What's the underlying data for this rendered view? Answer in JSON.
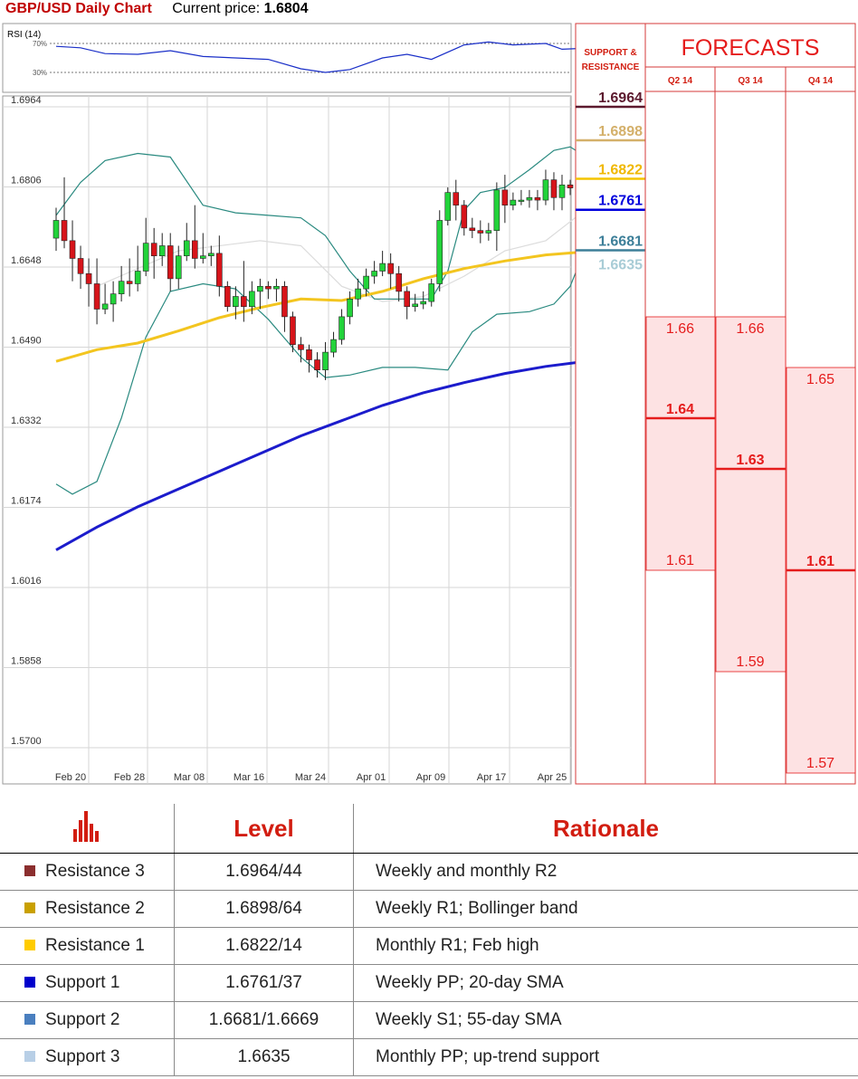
{
  "header": {
    "title": "GBP/USD Daily Chart",
    "price_label": "Current price:",
    "current_price": "1.6804"
  },
  "rsi_label": "RSI (14)",
  "rsi_ticks": [
    "70%",
    "30%"
  ],
  "sr_header_line1": "SUPPORT &",
  "sr_header_line2": "RESISTANCE",
  "forecasts_title": "FORECASTS",
  "quarters": [
    "Q2 14",
    "Q3 14",
    "Q4 14"
  ],
  "colors": {
    "resistance3": "#5c1a2e",
    "resistance2": "#d4b06a",
    "resistance1": "#f4c400",
    "support1": "#0000dd",
    "support2": "#2e7fa0",
    "support3": "#b9d9e6",
    "forecast_red": "#e51c1c",
    "forecast_fill": "#fde2e3",
    "sma_yellow": "#f3c51f",
    "sma_blue": "#1c1ccc",
    "bollinger": "#2a8a80"
  },
  "sr_levels": [
    {
      "value": "1.6964",
      "level": 1.6964,
      "color": "#5c1a2e",
      "line": "#5c1a2e"
    },
    {
      "value": "1.6898",
      "level": 1.6898,
      "color": "#d4b06a",
      "line": "#d4b06a"
    },
    {
      "value": "1.6822",
      "level": 1.6822,
      "color": "#f0b800",
      "line": "#f4c400"
    },
    {
      "value": "1.6761",
      "level": 1.6761,
      "color": "#0000dd",
      "line": "#0000dd"
    },
    {
      "value": "1.6681",
      "level": 1.6681,
      "color": "#3d7f99",
      "line": "#3d7f99"
    },
    {
      "value": "1.6635",
      "level": 1.6635,
      "color": "#a8ccd6",
      "line": ""
    }
  ],
  "forecasts": [
    {
      "quarter": "Q2 14",
      "high": 1.66,
      "high_label": "1.66",
      "median": 1.64,
      "median_label": "1.64",
      "low": 1.61,
      "low_label": "1.61"
    },
    {
      "quarter": "Q3 14",
      "high": 1.66,
      "high_label": "1.66",
      "median": 1.63,
      "median_label": "1.63",
      "low": 1.59,
      "low_label": "1.59"
    },
    {
      "quarter": "Q4 14",
      "high": 1.65,
      "high_label": "1.65",
      "median": 1.61,
      "median_label": "1.61",
      "low": 1.57,
      "low_label": "1.57"
    }
  ],
  "chart_data": {
    "type": "candlestick",
    "title": "GBP/USD Daily Chart",
    "y_ticks": [
      "1.6964",
      "1.6806",
      "1.6648",
      "1.6490",
      "1.6332",
      "1.6174",
      "1.6016",
      "1.5858",
      "1.5700"
    ],
    "ylim": [
      1.57,
      1.6964
    ],
    "x_ticks": [
      "Feb 20",
      "Feb 28",
      "Mar 08",
      "Mar 16",
      "Mar 24",
      "Apr 01",
      "Apr 09",
      "Apr 17",
      "Apr 25"
    ],
    "grid": true,
    "candles": [
      [
        1.6705,
        1.674,
        1.6765,
        1.668
      ],
      [
        1.674,
        1.67,
        1.6825,
        1.6685
      ],
      [
        1.67,
        1.6665,
        1.674,
        1.662
      ],
      [
        1.6665,
        1.6635,
        1.669,
        1.6605
      ],
      [
        1.6635,
        1.6615,
        1.6665,
        1.657
      ],
      [
        1.6615,
        1.6565,
        1.6665,
        1.6535
      ],
      [
        1.6565,
        1.6575,
        1.6615,
        1.6555
      ],
      [
        1.6575,
        1.6595,
        1.662,
        1.654
      ],
      [
        1.6595,
        1.662,
        1.665,
        1.658
      ],
      [
        1.662,
        1.6615,
        1.6665,
        1.659
      ],
      [
        1.6615,
        1.664,
        1.669,
        1.66
      ],
      [
        1.664,
        1.6695,
        1.6745,
        1.663
      ],
      [
        1.6695,
        1.667,
        1.6725,
        1.6625
      ],
      [
        1.667,
        1.669,
        1.6715,
        1.665
      ],
      [
        1.669,
        1.6625,
        1.6715,
        1.66
      ],
      [
        1.6625,
        1.667,
        1.669,
        1.6605
      ],
      [
        1.667,
        1.67,
        1.6735,
        1.666
      ],
      [
        1.67,
        1.6665,
        1.677,
        1.6645
      ],
      [
        1.6665,
        1.667,
        1.6715,
        1.6655
      ],
      [
        1.667,
        1.6675,
        1.669,
        1.665
      ],
      [
        1.6675,
        1.661,
        1.671,
        1.659
      ],
      [
        1.661,
        1.657,
        1.662,
        1.656
      ],
      [
        1.657,
        1.659,
        1.661,
        1.6545
      ],
      [
        1.659,
        1.657,
        1.666,
        1.654
      ],
      [
        1.657,
        1.66,
        1.662,
        1.6555
      ],
      [
        1.66,
        1.661,
        1.6625,
        1.6565
      ],
      [
        1.661,
        1.6605,
        1.662,
        1.6585
      ],
      [
        1.6605,
        1.661,
        1.6625,
        1.658
      ],
      [
        1.661,
        1.655,
        1.662,
        1.652
      ],
      [
        1.655,
        1.6495,
        1.656,
        1.648
      ],
      [
        1.6495,
        1.6485,
        1.651,
        1.646
      ],
      [
        1.6485,
        1.6465,
        1.6495,
        1.644
      ],
      [
        1.6465,
        1.6445,
        1.648,
        1.643
      ],
      [
        1.6445,
        1.648,
        1.65,
        1.6425
      ],
      [
        1.648,
        1.6505,
        1.652,
        1.647
      ],
      [
        1.6505,
        1.655,
        1.6565,
        1.6495
      ],
      [
        1.655,
        1.6585,
        1.66,
        1.6535
      ],
      [
        1.6585,
        1.6605,
        1.6625,
        1.657
      ],
      [
        1.6605,
        1.663,
        1.6645,
        1.659
      ],
      [
        1.663,
        1.664,
        1.666,
        1.6615
      ],
      [
        1.664,
        1.6655,
        1.668,
        1.663
      ],
      [
        1.6655,
        1.6635,
        1.6675,
        1.6605
      ],
      [
        1.6635,
        1.66,
        1.665,
        1.658
      ],
      [
        1.66,
        1.657,
        1.661,
        1.6545
      ],
      [
        1.657,
        1.6575,
        1.6595,
        1.656
      ],
      [
        1.6575,
        1.658,
        1.66,
        1.6565
      ],
      [
        1.658,
        1.6615,
        1.6625,
        1.657
      ],
      [
        1.6615,
        1.674,
        1.676,
        1.66
      ],
      [
        1.674,
        1.6795,
        1.6805,
        1.673
      ],
      [
        1.6795,
        1.677,
        1.682,
        1.674
      ],
      [
        1.677,
        1.6725,
        1.678,
        1.671
      ],
      [
        1.6725,
        1.672,
        1.6745,
        1.6705
      ],
      [
        1.672,
        1.6715,
        1.674,
        1.6695
      ],
      [
        1.6715,
        1.672,
        1.6735,
        1.67
      ],
      [
        1.672,
        1.68,
        1.6815,
        1.668
      ],
      [
        1.68,
        1.677,
        1.683,
        1.6735
      ],
      [
        1.677,
        1.678,
        1.6795,
        1.676
      ],
      [
        1.678,
        1.678,
        1.68,
        1.677
      ],
      [
        1.678,
        1.6785,
        1.68,
        1.6765
      ],
      [
        1.6785,
        1.678,
        1.68,
        1.676
      ],
      [
        1.678,
        1.682,
        1.684,
        1.677
      ],
      [
        1.682,
        1.6785,
        1.6835,
        1.676
      ],
      [
        1.6785,
        1.681,
        1.683,
        1.676
      ],
      [
        1.681,
        1.6804,
        1.682,
        1.679
      ]
    ],
    "sma_yellow": [
      [
        0,
        1.6462
      ],
      [
        5,
        1.6485
      ],
      [
        10,
        1.6498
      ],
      [
        15,
        1.6522
      ],
      [
        20,
        1.6548
      ],
      [
        25,
        1.6568
      ],
      [
        30,
        1.6585
      ],
      [
        35,
        1.6582
      ],
      [
        40,
        1.66
      ],
      [
        45,
        1.6625
      ],
      [
        50,
        1.6645
      ],
      [
        55,
        1.666
      ],
      [
        60,
        1.6672
      ],
      [
        64,
        1.6677
      ]
    ],
    "sma_blue": [
      [
        0,
        1.609
      ],
      [
        5,
        1.6135
      ],
      [
        10,
        1.6175
      ],
      [
        15,
        1.621
      ],
      [
        20,
        1.6245
      ],
      [
        25,
        1.628
      ],
      [
        30,
        1.6315
      ],
      [
        35,
        1.6345
      ],
      [
        40,
        1.6375
      ],
      [
        45,
        1.64
      ],
      [
        50,
        1.642
      ],
      [
        55,
        1.6438
      ],
      [
        60,
        1.6452
      ],
      [
        64,
        1.646
      ]
    ],
    "bollinger_upper": [
      [
        0,
        1.675
      ],
      [
        3,
        1.6815
      ],
      [
        6,
        1.6858
      ],
      [
        10,
        1.6872
      ],
      [
        14,
        1.6865
      ],
      [
        18,
        1.677
      ],
      [
        22,
        1.6755
      ],
      [
        26,
        1.675
      ],
      [
        30,
        1.6745
      ],
      [
        33,
        1.671
      ],
      [
        36,
        1.664
      ],
      [
        39,
        1.6585
      ],
      [
        43,
        1.6585
      ],
      [
        46,
        1.6585
      ],
      [
        48,
        1.664
      ],
      [
        50,
        1.676
      ],
      [
        52,
        1.6795
      ],
      [
        55,
        1.6805
      ],
      [
        58,
        1.684
      ],
      [
        61,
        1.6878
      ],
      [
        63,
        1.6885
      ],
      [
        64,
        1.6875
      ]
    ],
    "bollinger_lower": [
      [
        0,
        1.622
      ],
      [
        2,
        1.62
      ],
      [
        5,
        1.6225
      ],
      [
        8,
        1.635
      ],
      [
        11,
        1.651
      ],
      [
        14,
        1.66
      ],
      [
        18,
        1.6615
      ],
      [
        22,
        1.6605
      ],
      [
        26,
        1.6545
      ],
      [
        30,
        1.647
      ],
      [
        33,
        1.643
      ],
      [
        36,
        1.6435
      ],
      [
        40,
        1.645
      ],
      [
        44,
        1.645
      ],
      [
        48,
        1.6445
      ],
      [
        51,
        1.652
      ],
      [
        54,
        1.6555
      ],
      [
        58,
        1.656
      ],
      [
        61,
        1.6575
      ],
      [
        63,
        1.661
      ],
      [
        64,
        1.665
      ]
    ],
    "bollinger_mid": [
      [
        5,
        1.661
      ],
      [
        15,
        1.668
      ],
      [
        25,
        1.67
      ],
      [
        30,
        1.669
      ],
      [
        35,
        1.661
      ],
      [
        40,
        1.658
      ],
      [
        45,
        1.659
      ],
      [
        50,
        1.663
      ],
      [
        55,
        1.668
      ],
      [
        60,
        1.67
      ],
      [
        64,
        1.675
      ]
    ],
    "rsi": [
      [
        0,
        66
      ],
      [
        3,
        64
      ],
      [
        6,
        56
      ],
      [
        10,
        55
      ],
      [
        14,
        60
      ],
      [
        18,
        52
      ],
      [
        22,
        50
      ],
      [
        26,
        48
      ],
      [
        30,
        35
      ],
      [
        33,
        30
      ],
      [
        36,
        34
      ],
      [
        40,
        50
      ],
      [
        43,
        55
      ],
      [
        46,
        48
      ],
      [
        50,
        68
      ],
      [
        53,
        72
      ],
      [
        56,
        68
      ],
      [
        60,
        70
      ],
      [
        62,
        62
      ],
      [
        64,
        63
      ]
    ]
  },
  "table": {
    "headers": {
      "level": "Level",
      "rationale": "Rationale"
    },
    "rows": [
      {
        "name": "Resistance 3",
        "color": "#8b2e2e",
        "level": "1.6964/44",
        "rationale": "Weekly and monthly R2"
      },
      {
        "name": "Resistance 2",
        "color": "#c9a000",
        "level": "1.6898/64",
        "rationale": "Weekly R1; Bollinger band"
      },
      {
        "name": "Resistance 1",
        "color": "#ffcc00",
        "level": "1.6822/14",
        "rationale": "Monthly R1; Feb high"
      },
      {
        "name": "Support 1",
        "color": "#0000cc",
        "level": "1.6761/37",
        "rationale": "Weekly PP; 20-day SMA"
      },
      {
        "name": "Support 2",
        "color": "#4a7fbf",
        "level": "1.6681/1.6669",
        "rationale": "Weekly S1; 55-day SMA"
      },
      {
        "name": "Support 3",
        "color": "#b8cfe6",
        "level": "1.6635",
        "rationale": "Monthly PP; up-trend support"
      }
    ]
  }
}
